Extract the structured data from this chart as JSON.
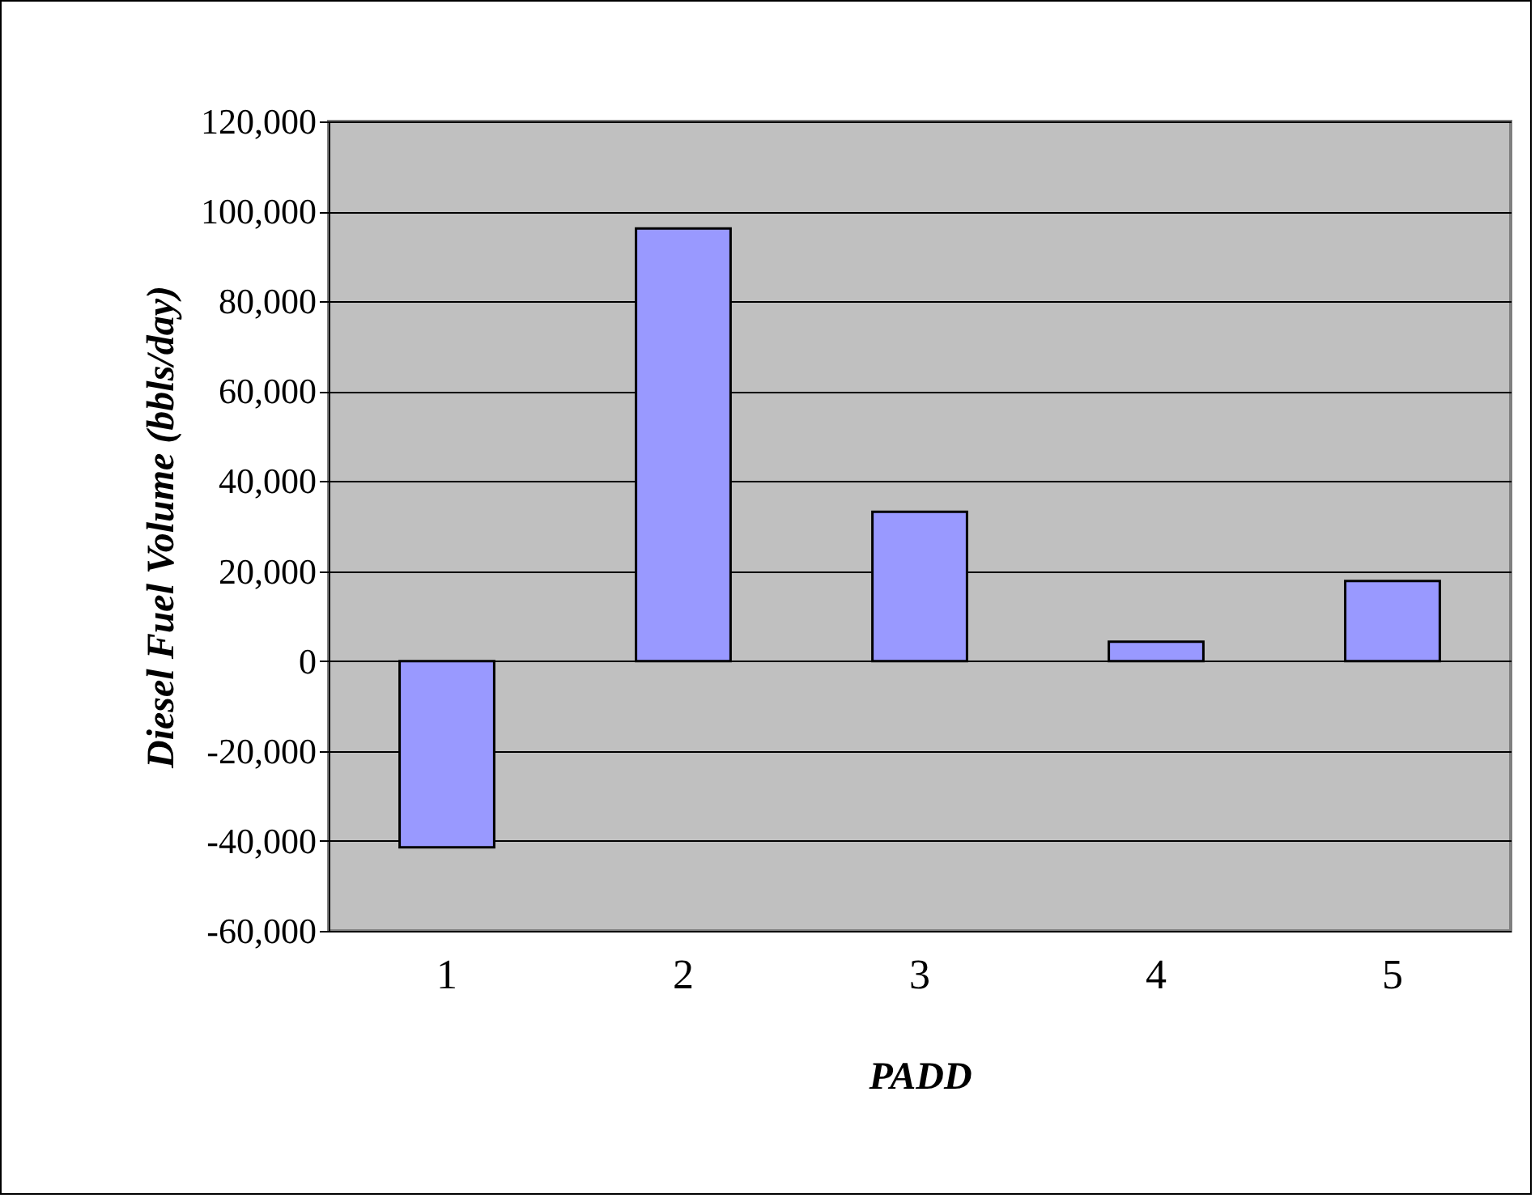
{
  "chart_data": {
    "type": "bar",
    "xlabel": "PADD",
    "ylabel": "Diesel Fuel Volume (bbls/day)",
    "categories": [
      "1",
      "2",
      "3",
      "4",
      "5"
    ],
    "values": [
      -41400,
      96200,
      33200,
      4300,
      17800
    ],
    "color": "#9999ff",
    "ylim": [
      -60000,
      120000
    ],
    "yticks": [
      {
        "value": -60000,
        "label": "-60,000"
      },
      {
        "value": -40000,
        "label": "-40,000"
      },
      {
        "value": -20000,
        "label": "-20,000"
      },
      {
        "value": 0,
        "label": "0"
      },
      {
        "value": 20000,
        "label": "20,000"
      },
      {
        "value": 40000,
        "label": "40,000"
      },
      {
        "value": 60000,
        "label": "60,000"
      },
      {
        "value": 80000,
        "label": "80,000"
      },
      {
        "value": 100000,
        "label": "100,000"
      },
      {
        "value": 120000,
        "label": "120,000"
      }
    ],
    "grid": "y"
  }
}
